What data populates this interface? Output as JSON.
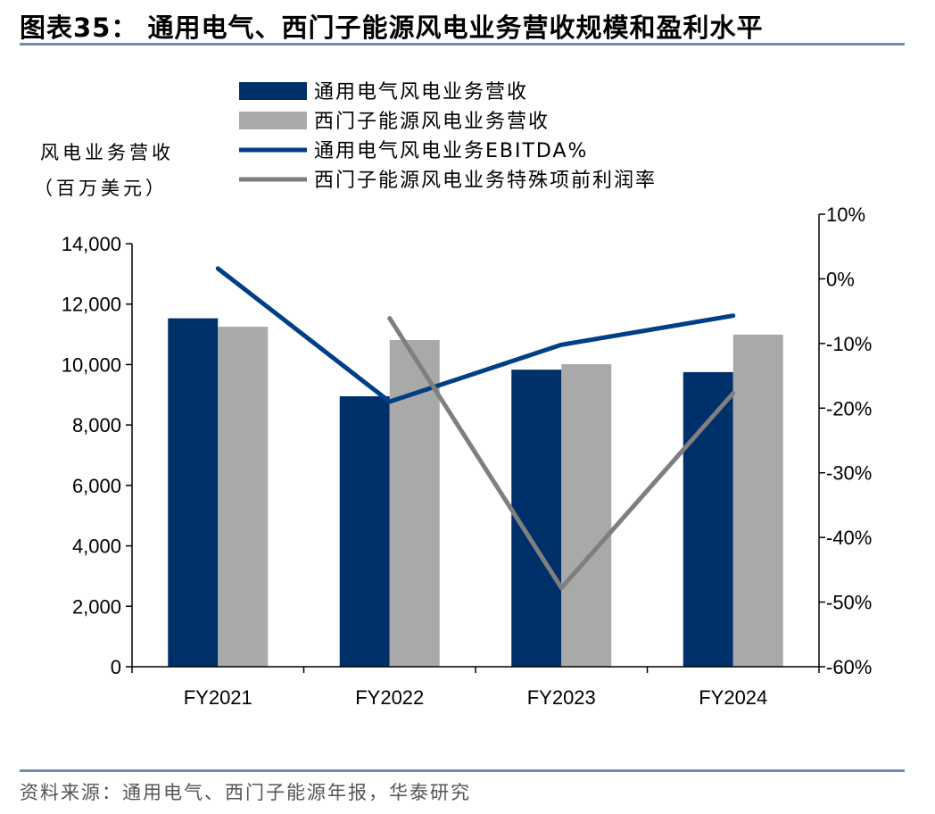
{
  "title": "图表35：  通用电气、西门子能源风电业务营收规模和盈利水平",
  "source": "资料来源：通用电气、西门子能源年报，华泰研究",
  "chart_data": {
    "type": "bar+line",
    "categories": [
      "FY2021",
      "FY2022",
      "FY2023",
      "FY2024"
    ],
    "ylabel_left": [
      "风电业务营收",
      "（百万美元）"
    ],
    "ylim_left": [
      0,
      14000
    ],
    "yticks_left": [
      "0",
      "2,000",
      "4,000",
      "6,000",
      "8,000",
      "10,000",
      "12,000",
      "14,000"
    ],
    "ylim_right": [
      -60,
      10
    ],
    "yticks_right": [
      "-60%",
      "-50%",
      "-40%",
      "-30%",
      "-20%",
      "-10%",
      "0%",
      "10%"
    ],
    "legend_placement": "top",
    "grid": false,
    "bar_series": [
      {
        "name": "通用电气风电业务营收",
        "color": "#003069",
        "values": [
          11530,
          8950,
          9830,
          9750
        ]
      },
      {
        "name": "西门子能源风电业务营收",
        "color": "#a9a9a9",
        "values": [
          11250,
          10810,
          10010,
          10990
        ]
      }
    ],
    "line_series": [
      {
        "name": "通用电气风电业务EBITDA%",
        "color": "#003f87",
        "values": [
          1.6,
          -19.0,
          -10.2,
          -5.7
        ]
      },
      {
        "name": "西门子能源风电业务特殊项前利润率",
        "color": "#7f7f7f",
        "values": [
          null,
          -6.1,
          -47.8,
          -17.7
        ]
      }
    ]
  }
}
